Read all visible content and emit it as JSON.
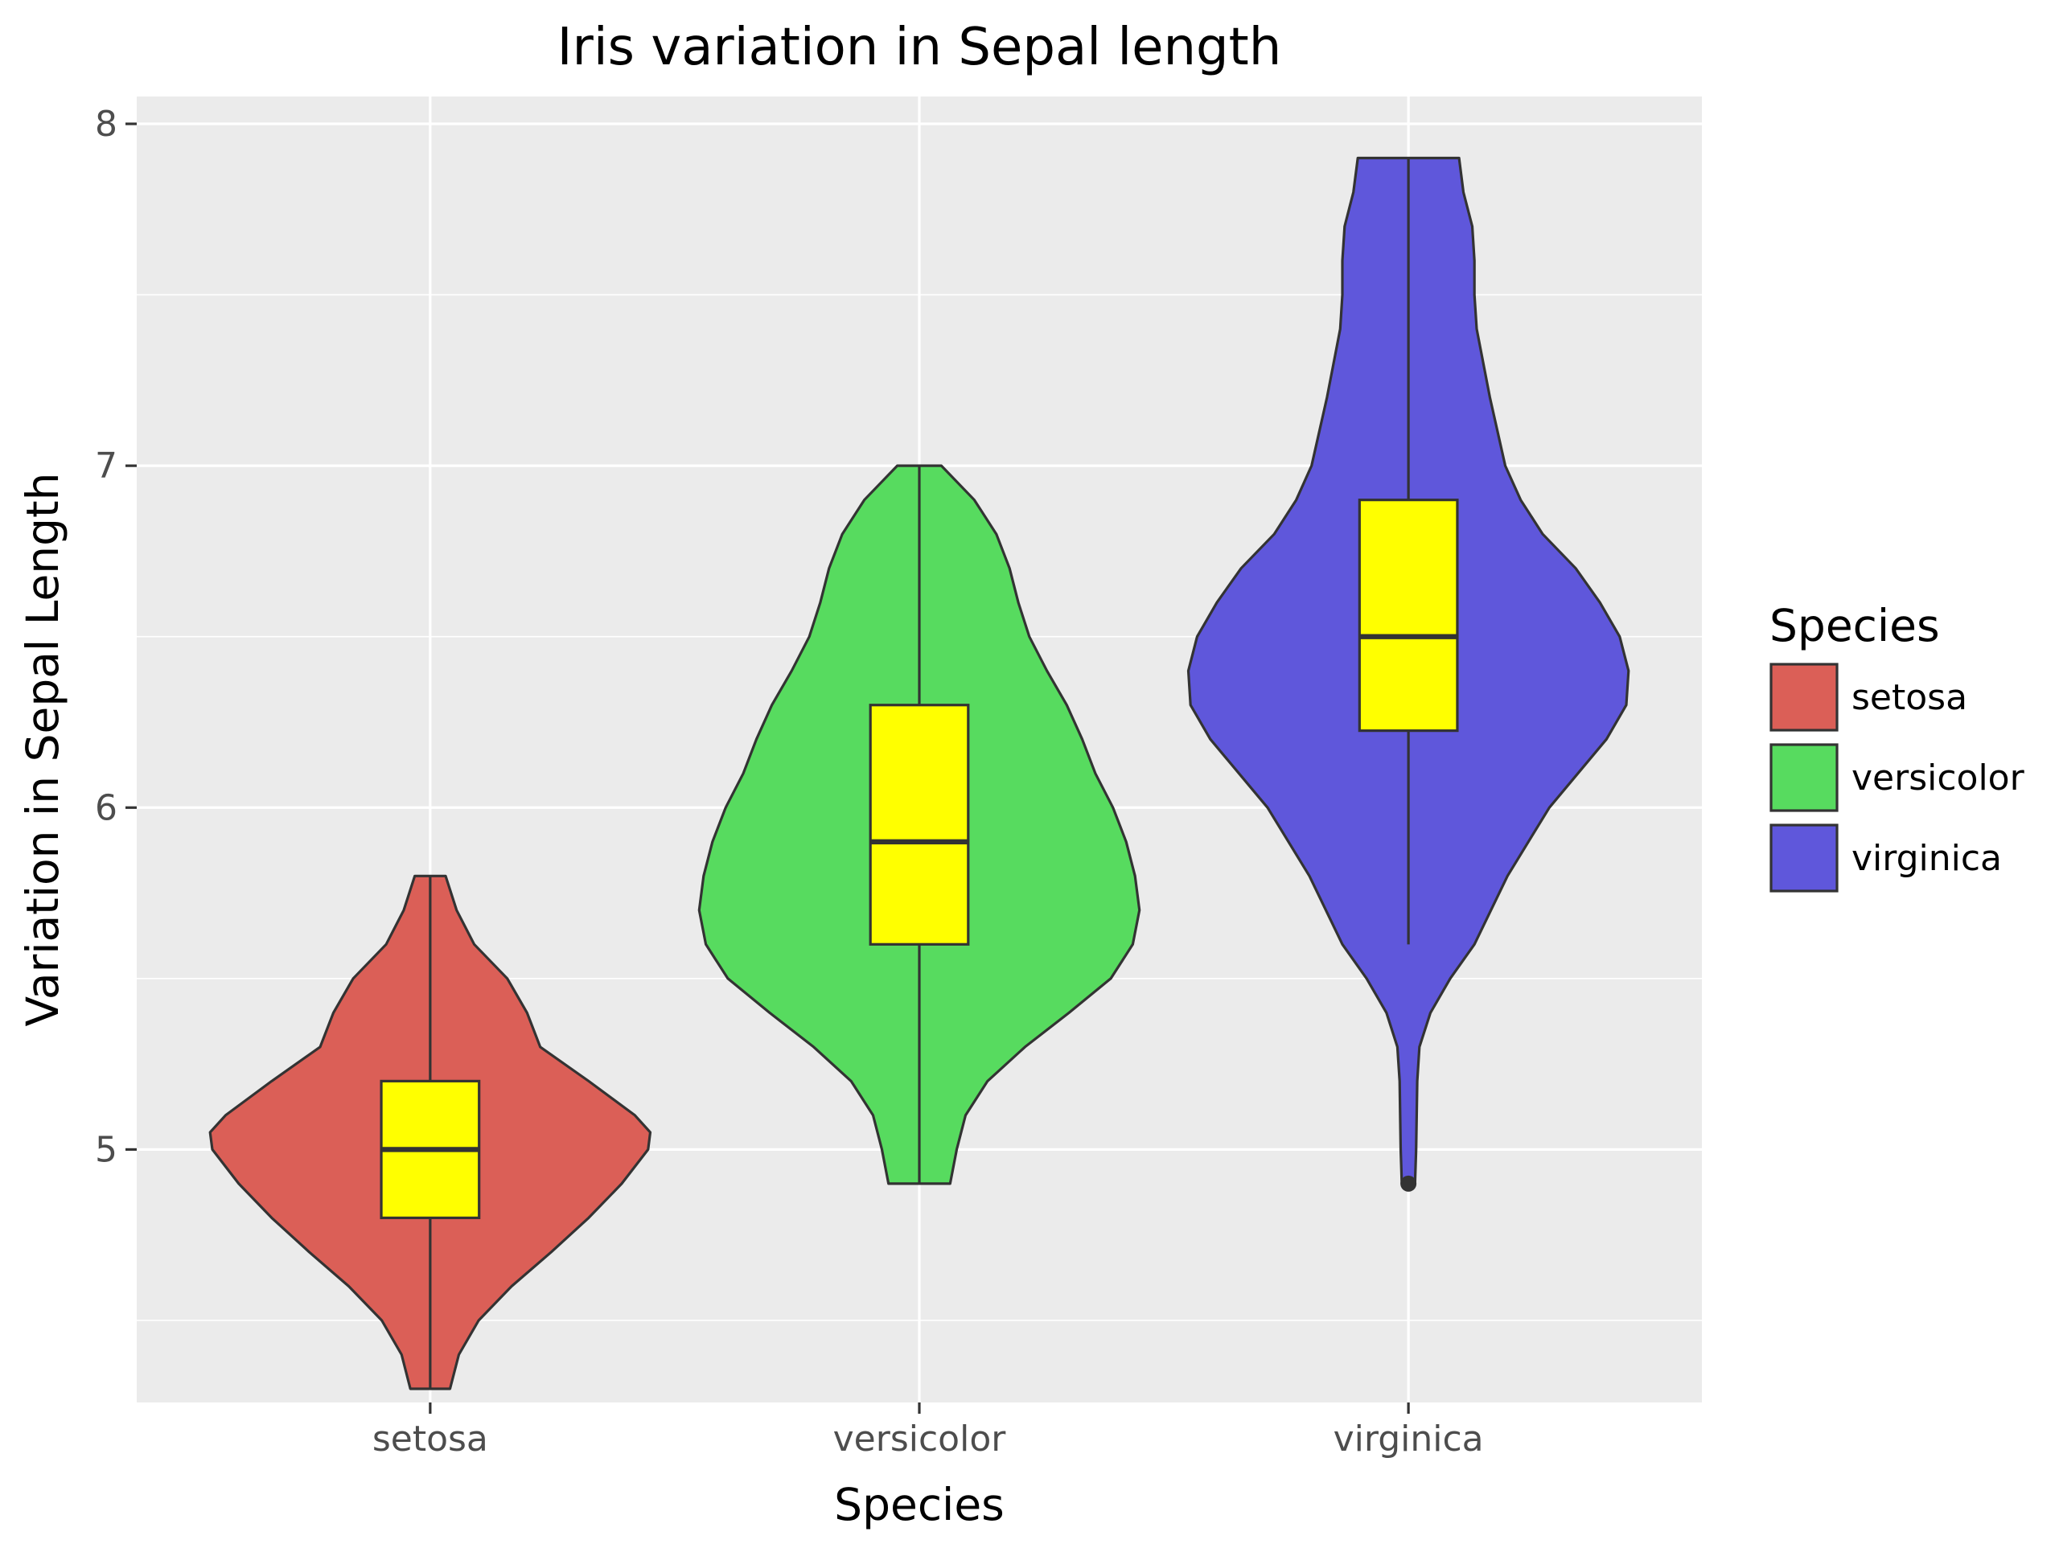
{
  "chart_data": {
    "type": "violin",
    "title": "Iris variation in Sepal length",
    "xlabel": "Species",
    "ylabel": "Variation in Sepal Length",
    "ylim": [
      4.26,
      8.08
    ],
    "yticks": [
      5,
      6,
      7,
      8
    ],
    "grid": true,
    "legend": {
      "title": "Species",
      "placement": "right"
    },
    "box_fill": "#FFFF00",
    "outline_color": "#333333",
    "panel_color": "#EBEBEB",
    "categories": [
      "setosa",
      "versicolor",
      "virginica"
    ],
    "series": [
      {
        "name": "setosa",
        "color": "#DB5F57",
        "min": 4.3,
        "q1": 4.8,
        "median": 5.0,
        "q3": 5.2,
        "max": 5.8,
        "outliers": [],
        "density": [
          [
            4.3,
            0.09
          ],
          [
            4.4,
            0.13
          ],
          [
            4.5,
            0.22
          ],
          [
            4.6,
            0.37
          ],
          [
            4.7,
            0.55
          ],
          [
            4.8,
            0.72
          ],
          [
            4.9,
            0.87
          ],
          [
            5.0,
            0.99
          ],
          [
            5.05,
            1.0
          ],
          [
            5.1,
            0.93
          ],
          [
            5.2,
            0.72
          ],
          [
            5.3,
            0.5
          ],
          [
            5.4,
            0.44
          ],
          [
            5.5,
            0.35
          ],
          [
            5.6,
            0.2
          ],
          [
            5.7,
            0.12
          ],
          [
            5.8,
            0.07
          ]
        ]
      },
      {
        "name": "versicolor",
        "color": "#57DB5F",
        "min": 4.9,
        "q1": 5.6,
        "median": 5.9,
        "q3": 6.3,
        "max": 7.0,
        "outliers": [],
        "density": [
          [
            4.9,
            0.14
          ],
          [
            5.0,
            0.17
          ],
          [
            5.1,
            0.21
          ],
          [
            5.2,
            0.31
          ],
          [
            5.3,
            0.48
          ],
          [
            5.4,
            0.68
          ],
          [
            5.5,
            0.87
          ],
          [
            5.6,
            0.97
          ],
          [
            5.7,
            1.0
          ],
          [
            5.8,
            0.98
          ],
          [
            5.9,
            0.94
          ],
          [
            6.0,
            0.88
          ],
          [
            6.1,
            0.8
          ],
          [
            6.2,
            0.74
          ],
          [
            6.3,
            0.67
          ],
          [
            6.4,
            0.58
          ],
          [
            6.5,
            0.5
          ],
          [
            6.6,
            0.45
          ],
          [
            6.7,
            0.41
          ],
          [
            6.8,
            0.35
          ],
          [
            6.9,
            0.25
          ],
          [
            7.0,
            0.1
          ]
        ]
      },
      {
        "name": "virginica",
        "color": "#5F57DB",
        "min": 5.6,
        "q1": 6.225,
        "median": 6.5,
        "q3": 6.9,
        "max": 7.9,
        "outliers": [
          4.9
        ],
        "density": [
          [
            4.9,
            0.03
          ],
          [
            5.0,
            0.035
          ],
          [
            5.2,
            0.04
          ],
          [
            5.3,
            0.05
          ],
          [
            5.4,
            0.1
          ],
          [
            5.5,
            0.19
          ],
          [
            5.6,
            0.3
          ],
          [
            5.8,
            0.45
          ],
          [
            6.0,
            0.64
          ],
          [
            6.2,
            0.9
          ],
          [
            6.3,
            0.99
          ],
          [
            6.4,
            1.0
          ],
          [
            6.5,
            0.96
          ],
          [
            6.6,
            0.87
          ],
          [
            6.7,
            0.76
          ],
          [
            6.8,
            0.61
          ],
          [
            6.9,
            0.51
          ],
          [
            7.0,
            0.44
          ],
          [
            7.2,
            0.37
          ],
          [
            7.4,
            0.31
          ],
          [
            7.5,
            0.3
          ],
          [
            7.6,
            0.3
          ],
          [
            7.7,
            0.29
          ],
          [
            7.8,
            0.25
          ],
          [
            7.9,
            0.23
          ]
        ]
      }
    ]
  }
}
